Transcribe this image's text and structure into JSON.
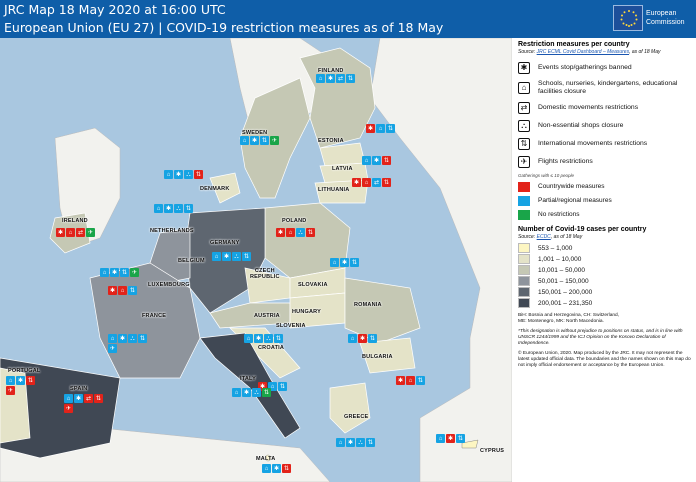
{
  "header": {
    "line1": "JRC Map 18 May 2020 at 16:00 UTC",
    "line2": "European Union (EU 27) | COVID-19 restriction measures as of 18 May",
    "logo_text_1": "European",
    "logo_text_2": "Commission"
  },
  "colors": {
    "header_bg": "#0f5ea8",
    "sea": "#a9c7e0",
    "countrywide": "#e2231a",
    "partial": "#16a3e3",
    "none": "#19a549"
  },
  "countries": {
    "finland": "FINLAND",
    "sweden": "SWEDEN",
    "estonia": "ESTONIA",
    "latvia": "LATVIA",
    "lithuania": "LITHUANIA",
    "denmark": "DENMARK",
    "ireland": "IRELAND",
    "netherlands": "NETHERLANDS",
    "belgium": "BELGIUM",
    "luxembourg": "LUXEMBOURG",
    "germany": "GERMANY",
    "poland": "POLAND",
    "czech": "CZECH\nREPUBLIC",
    "slovakia": "SLOVAKIA",
    "austria": "AUSTRIA",
    "slovenia": "SLOVENIA",
    "hungary": "HUNGARY",
    "romania": "ROMANIA",
    "france": "FRANCE",
    "croatia": "CROATIA",
    "bulgaria": "BULGARIA",
    "portugal": "PORTUGAL",
    "spain": "SPAIN",
    "italy": "ITALY",
    "greece": "GREECE",
    "malta": "MALTA",
    "cyprus": "CYPRUS"
  },
  "legend": {
    "title": "Restriction measures per country",
    "source_prefix": "Source: ",
    "source_link": "JRC ECML Covid Dashboard – Measures",
    "source_suffix": ", as of 18 May",
    "measures": [
      {
        "icon": "events-banned-icon",
        "glyph": "✱",
        "label": "Events stop/gatherings banned"
      },
      {
        "icon": "school-closure-icon",
        "glyph": "⌂",
        "label": "Schools, nurseries, kindergartens, educational facilities closure"
      },
      {
        "icon": "domestic-movement-icon",
        "glyph": "✈",
        "label": "Domestic movements restrictions"
      },
      {
        "icon": "shop-closure-icon",
        "glyph": "⛬",
        "label": "Non-essential shops closure"
      },
      {
        "icon": "international-movement-icon",
        "glyph": "⇅",
        "label": "International movements restrictions"
      },
      {
        "icon": "flights-icon",
        "glyph": "✈",
        "label": "Flights restrictions"
      }
    ],
    "gatherings_note": "Gatherings with ≤ 10 people",
    "status": [
      {
        "label": "Countrywide measures",
        "color": "#e2231a"
      },
      {
        "label": "Partial/regional measures",
        "color": "#16a3e3"
      },
      {
        "label": "No restrictions",
        "color": "#19a549"
      }
    ],
    "cases_title": "Number of Covid-19 cases per country",
    "cases_source_prefix": "Source: ",
    "cases_source_link": "ECDC",
    "cases_source_suffix": ", as of 18 May",
    "cases_classes": [
      {
        "label": "553 – 1,000",
        "color": "#fdf6c2"
      },
      {
        "label": "1,001 – 10,000",
        "color": "#e4e3c8"
      },
      {
        "label": "10,001 – 50,000",
        "color": "#c5c8b4"
      },
      {
        "label": "50,001 – 150,000",
        "color": "#8e949c"
      },
      {
        "label": "150,001 – 200,000",
        "color": "#5e6670"
      },
      {
        "label": "200,001 – 231,350",
        "color": "#404854"
      }
    ],
    "abbrev_1": "BiH: Bosnia and Herzegovina, CH: Switzerland,",
    "abbrev_2": "ME: Montenegro, MK: North Macedonia.",
    "disclaimer": "*This designation is without prejudice to positions on status, and is in line with UNSCR 1244/1999 and the ICJ Opinion on the Kosovo Declaration of Independence.",
    "copyright": "© European Union, 2020. Map produced by the JRC. It may not represent the latest updated official data. The boundaries and the names shown on this map do not imply official endorsement or acceptance by the European Union."
  }
}
